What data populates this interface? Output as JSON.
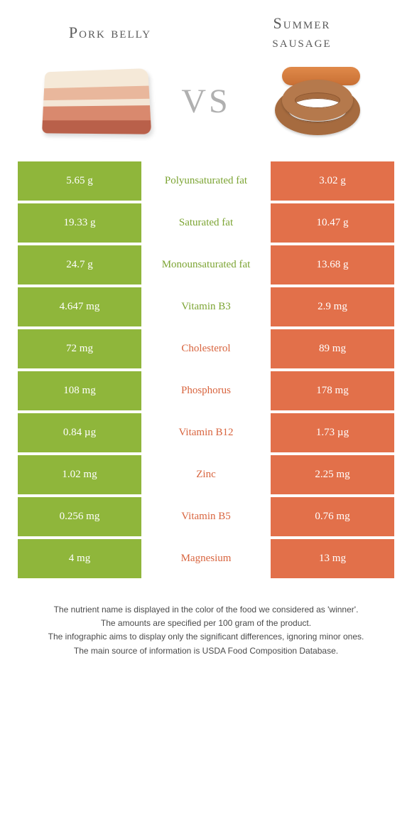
{
  "colors": {
    "left": "#8fb63b",
    "right": "#e2704a",
    "left_text": "#7ca433",
    "right_text": "#d8643e"
  },
  "header": {
    "left_title": "Pork belly",
    "right_title": "Summer sausage",
    "vs": "VS"
  },
  "rows": [
    {
      "left": "5.65 g",
      "label": "Polyunsaturated fat",
      "right": "3.02 g",
      "winner": "left"
    },
    {
      "left": "19.33 g",
      "label": "Saturated fat",
      "right": "10.47 g",
      "winner": "left"
    },
    {
      "left": "24.7 g",
      "label": "Monounsaturated fat",
      "right": "13.68 g",
      "winner": "left"
    },
    {
      "left": "4.647 mg",
      "label": "Vitamin B3",
      "right": "2.9 mg",
      "winner": "left"
    },
    {
      "left": "72 mg",
      "label": "Cholesterol",
      "right": "89 mg",
      "winner": "right"
    },
    {
      "left": "108 mg",
      "label": "Phosphorus",
      "right": "178 mg",
      "winner": "right"
    },
    {
      "left": "0.84 µg",
      "label": "Vitamin B12",
      "right": "1.73 µg",
      "winner": "right"
    },
    {
      "left": "1.02 mg",
      "label": "Zinc",
      "right": "2.25 mg",
      "winner": "right"
    },
    {
      "left": "0.256 mg",
      "label": "Vitamin B5",
      "right": "0.76 mg",
      "winner": "right"
    },
    {
      "left": "4 mg",
      "label": "Magnesium",
      "right": "13 mg",
      "winner": "right"
    }
  ],
  "footnotes": [
    "The nutrient name is displayed in the color of the food we considered as 'winner'.",
    "The amounts are specified per 100 gram of the product.",
    "The infographic aims to display only the significant differences, ignoring minor ones.",
    "The main source of information is USDA Food Composition Database."
  ]
}
